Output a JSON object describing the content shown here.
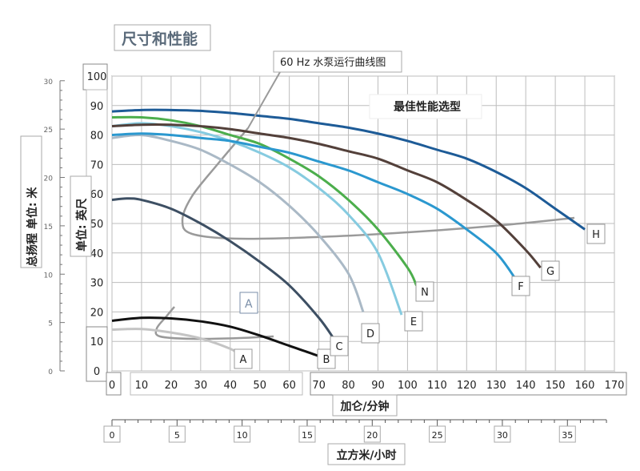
{
  "page_title": "尺寸和性能",
  "chart_data": {
    "type": "line",
    "title": "尺寸和性能",
    "annotation_60hz": "60 Hz 水泵运行曲线图",
    "annotation_best": "最佳性能选型",
    "y_label_metric": "总扬程 单位: 米",
    "y_label_imperial": "单位: 英尺",
    "x_label_gpm": "加仑/分钟",
    "x_label_m3h": "立方米/小时",
    "x_ticks_gpm": [
      "0",
      "10",
      "20",
      "30",
      "40",
      "50",
      "60",
      "70",
      "80",
      "90",
      "100",
      "110",
      "120",
      "130",
      "140",
      "150",
      "160",
      "170"
    ],
    "x_ticks_m3h": [
      "0",
      "5",
      "10",
      "15",
      "20",
      "25",
      "30",
      "35"
    ],
    "y_ticks_ft": [
      "0",
      "10",
      "20",
      "30",
      "40",
      "50",
      "60",
      "70",
      "80",
      "90",
      "100"
    ],
    "y_ticks_m": [
      "0",
      "5",
      "10",
      "15",
      "20",
      "25",
      "30"
    ],
    "x_range_gpm": [
      0,
      170
    ],
    "y_range_ft": [
      0,
      100
    ],
    "grid": true,
    "series": [
      {
        "name": "A",
        "color": "#c4c4c4",
        "x": [
          0,
          10,
          20,
          30,
          40,
          43
        ],
        "y": [
          14,
          14.2,
          13,
          11,
          7.5,
          5.5
        ]
      },
      {
        "name": "B",
        "color": "#111111",
        "x": [
          0,
          10,
          20,
          30,
          40,
          50,
          60,
          70,
          73
        ],
        "y": [
          17,
          18,
          17.8,
          16.8,
          15,
          12,
          8.5,
          5,
          3.5
        ]
      },
      {
        "name": "C",
        "color": "#3d4f63",
        "x": [
          0,
          5,
          10,
          20,
          30,
          40,
          50,
          60,
          70,
          75
        ],
        "y": [
          58,
          58.5,
          58,
          55,
          50,
          44,
          37,
          29,
          18,
          11
        ]
      },
      {
        "name": "D",
        "color": "#aab9c6",
        "x": [
          0,
          10,
          20,
          30,
          40,
          50,
          60,
          70,
          80,
          85
        ],
        "y": [
          79,
          80,
          78,
          75,
          70,
          64,
          56,
          46,
          33,
          20
        ]
      },
      {
        "name": "E",
        "color": "#86cbe0",
        "x": [
          0,
          10,
          20,
          30,
          40,
          50,
          60,
          70,
          80,
          90,
          98
        ],
        "y": [
          83,
          84,
          83,
          81,
          78,
          74,
          69,
          62,
          53,
          40,
          19
        ]
      },
      {
        "name": "N",
        "color": "#4cae4c",
        "x": [
          0,
          10,
          20,
          30,
          40,
          50,
          60,
          70,
          80,
          90,
          100,
          103
        ],
        "y": [
          86,
          86,
          85,
          83,
          80,
          77,
          72,
          66,
          58,
          48,
          35,
          29
        ]
      },
      {
        "name": "F",
        "color": "#2b98cf",
        "x": [
          0,
          10,
          20,
          30,
          40,
          50,
          60,
          70,
          80,
          90,
          100,
          110,
          120,
          130,
          136
        ],
        "y": [
          80,
          80.5,
          80,
          79,
          78,
          76,
          74,
          71,
          68,
          64,
          60,
          55,
          48,
          40,
          32
        ]
      },
      {
        "name": "G",
        "color": "#53403a",
        "x": [
          0,
          10,
          20,
          30,
          40,
          50,
          60,
          70,
          80,
          90,
          100,
          110,
          120,
          130,
          140,
          145
        ],
        "y": [
          83,
          83.5,
          83.5,
          83,
          82,
          80.5,
          79,
          77,
          74.5,
          72,
          68,
          64,
          58,
          51,
          41,
          35
        ]
      },
      {
        "name": "H",
        "color": "#1d5b97",
        "x": [
          0,
          10,
          20,
          30,
          40,
          50,
          60,
          70,
          80,
          90,
          100,
          110,
          120,
          130,
          140,
          150,
          160
        ],
        "y": [
          88,
          88.5,
          88.5,
          88.2,
          87.5,
          86.5,
          85.5,
          84,
          82.5,
          80.5,
          78,
          75,
          72,
          67.5,
          62,
          55,
          48
        ]
      }
    ]
  }
}
